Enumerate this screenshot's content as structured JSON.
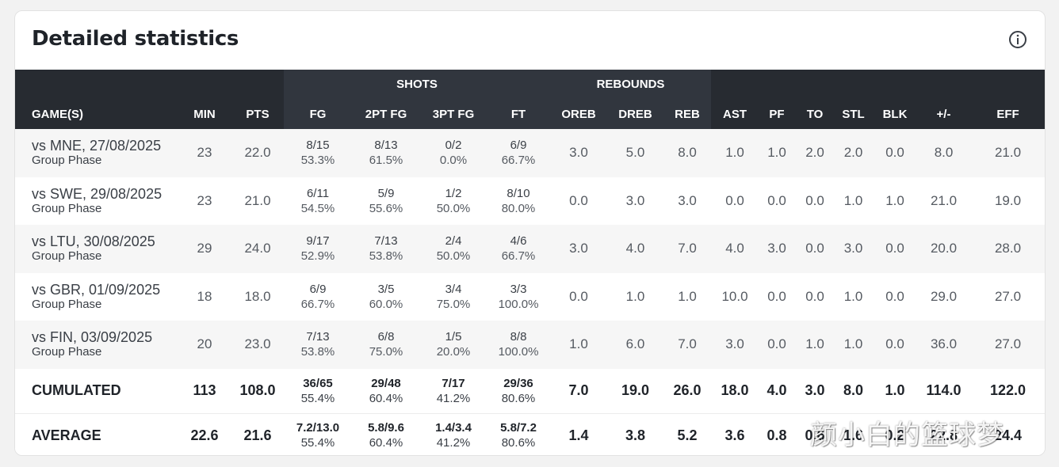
{
  "card": {
    "title": "Detailed statistics"
  },
  "groups": {
    "shots": "SHOTS",
    "rebounds": "REBOUNDS"
  },
  "columns": {
    "game": "GAME(S)",
    "min": "MIN",
    "pts": "PTS",
    "fg": "FG",
    "fg2": "2PT FG",
    "fg3": "3PT FG",
    "ft": "FT",
    "oreb": "OREB",
    "dreb": "DREB",
    "reb": "REB",
    "ast": "AST",
    "pf": "PF",
    "to": "TO",
    "stl": "STL",
    "blk": "BLK",
    "pm": "+/-",
    "eff": "EFF"
  },
  "games": [
    {
      "name": "vs MNE, 27/08/2025",
      "phase": "Group Phase",
      "min": "23",
      "pts": "22.0",
      "fg": [
        "8/15",
        "53.3%"
      ],
      "fg2": [
        "8/13",
        "61.5%"
      ],
      "fg3": [
        "0/2",
        "0.0%"
      ],
      "ft": [
        "6/9",
        "66.7%"
      ],
      "oreb": "3.0",
      "dreb": "5.0",
      "reb": "8.0",
      "ast": "1.0",
      "pf": "1.0",
      "to": "2.0",
      "stl": "2.0",
      "blk": "0.0",
      "pm": "8.0",
      "eff": "21.0"
    },
    {
      "name": "vs SWE, 29/08/2025",
      "phase": "Group Phase",
      "min": "23",
      "pts": "21.0",
      "fg": [
        "6/11",
        "54.5%"
      ],
      "fg2": [
        "5/9",
        "55.6%"
      ],
      "fg3": [
        "1/2",
        "50.0%"
      ],
      "ft": [
        "8/10",
        "80.0%"
      ],
      "oreb": "0.0",
      "dreb": "3.0",
      "reb": "3.0",
      "ast": "0.0",
      "pf": "0.0",
      "to": "0.0",
      "stl": "1.0",
      "blk": "1.0",
      "pm": "21.0",
      "eff": "19.0"
    },
    {
      "name": "vs LTU, 30/08/2025",
      "phase": "Group Phase",
      "min": "29",
      "pts": "24.0",
      "fg": [
        "9/17",
        "52.9%"
      ],
      "fg2": [
        "7/13",
        "53.8%"
      ],
      "fg3": [
        "2/4",
        "50.0%"
      ],
      "ft": [
        "4/6",
        "66.7%"
      ],
      "oreb": "3.0",
      "dreb": "4.0",
      "reb": "7.0",
      "ast": "4.0",
      "pf": "3.0",
      "to": "0.0",
      "stl": "3.0",
      "blk": "0.0",
      "pm": "20.0",
      "eff": "28.0"
    },
    {
      "name": "vs GBR, 01/09/2025",
      "phase": "Group Phase",
      "min": "18",
      "pts": "18.0",
      "fg": [
        "6/9",
        "66.7%"
      ],
      "fg2": [
        "3/5",
        "60.0%"
      ],
      "fg3": [
        "3/4",
        "75.0%"
      ],
      "ft": [
        "3/3",
        "100.0%"
      ],
      "oreb": "0.0",
      "dreb": "1.0",
      "reb": "1.0",
      "ast": "10.0",
      "pf": "0.0",
      "to": "0.0",
      "stl": "1.0",
      "blk": "0.0",
      "pm": "29.0",
      "eff": "27.0"
    },
    {
      "name": "vs FIN, 03/09/2025",
      "phase": "Group Phase",
      "min": "20",
      "pts": "23.0",
      "fg": [
        "7/13",
        "53.8%"
      ],
      "fg2": [
        "6/8",
        "75.0%"
      ],
      "fg3": [
        "1/5",
        "20.0%"
      ],
      "ft": [
        "8/8",
        "100.0%"
      ],
      "oreb": "1.0",
      "dreb": "6.0",
      "reb": "7.0",
      "ast": "3.0",
      "pf": "0.0",
      "to": "1.0",
      "stl": "1.0",
      "blk": "0.0",
      "pm": "36.0",
      "eff": "27.0"
    }
  ],
  "cumulated": {
    "label": "CUMULATED",
    "min": "113",
    "pts": "108.0",
    "fg": [
      "36/65",
      "55.4%"
    ],
    "fg2": [
      "29/48",
      "60.4%"
    ],
    "fg3": [
      "7/17",
      "41.2%"
    ],
    "ft": [
      "29/36",
      "80.6%"
    ],
    "oreb": "7.0",
    "dreb": "19.0",
    "reb": "26.0",
    "ast": "18.0",
    "pf": "4.0",
    "to": "3.0",
    "stl": "8.0",
    "blk": "1.0",
    "pm": "114.0",
    "eff": "122.0"
  },
  "average": {
    "label": "AVERAGE",
    "min": "22.6",
    "pts": "21.6",
    "fg": [
      "7.2/13.0",
      "55.4%"
    ],
    "fg2": [
      "5.8/9.6",
      "60.4%"
    ],
    "fg3": [
      "1.4/3.4",
      "41.2%"
    ],
    "ft": [
      "5.8/7.2",
      "80.6%"
    ],
    "oreb": "1.4",
    "dreb": "3.8",
    "reb": "5.2",
    "ast": "3.6",
    "pf": "0.8",
    "to": "0.6",
    "stl": "1.6",
    "blk": "0.2",
    "pm": "22.8",
    "eff": "24.4"
  },
  "watermark": "颜小白的篮球梦",
  "colors": {
    "header_bg": "#272b31",
    "header_group_bg": "#31363e",
    "stripe": "#f6f6f6"
  },
  "icons": {
    "info": "info-circle-icon"
  }
}
